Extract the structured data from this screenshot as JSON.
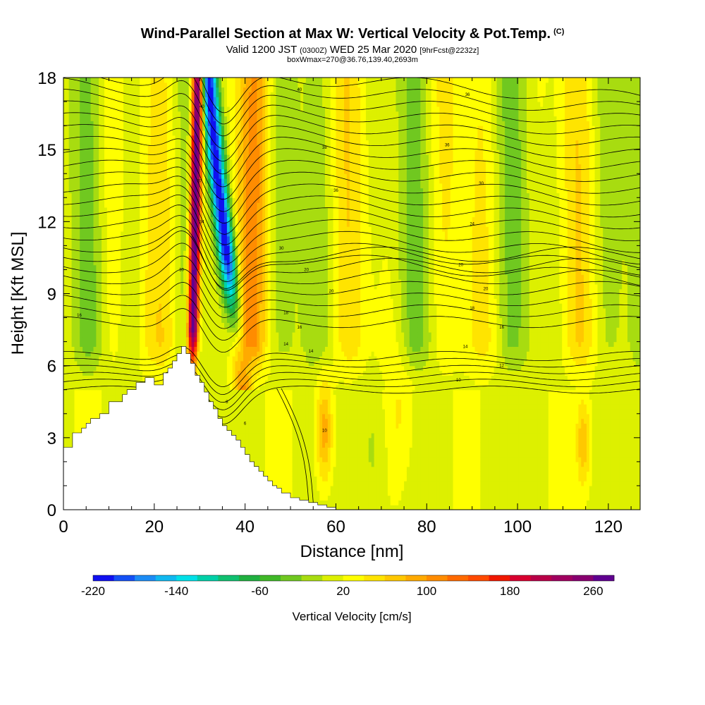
{
  "title": {
    "main": "Wind-Parallel Section at Max W: Vertical Velocity & Pot.Temp.",
    "copyright": "(C)",
    "valid_prefix": "Valid 1200 JST",
    "valid_utc": "(0300Z)",
    "valid_date": "WED 25 Mar 2020",
    "forecast": "[9hrFcst@2232z]",
    "box": "boxWmax=270@36.76,139.40,2693m"
  },
  "chart_data": {
    "type": "heatmap",
    "xlabel": "Distance [nm]",
    "ylabel": "Height [Kft MSL]",
    "xlim": [
      0,
      127
    ],
    "ylim": [
      0,
      18
    ],
    "x_ticks": [
      0,
      20,
      40,
      60,
      80,
      100,
      120
    ],
    "y_ticks": [
      0,
      3,
      6,
      9,
      12,
      15,
      18
    ],
    "colorbar": {
      "label": "Vertical Velocity [cm/s]",
      "range": [
        -220,
        280
      ],
      "tick_values": [
        -220,
        -140,
        -60,
        20,
        100,
        180,
        260
      ],
      "tick_labels": [
        "-220",
        "-140",
        "-60",
        "20",
        "100",
        "180",
        "260"
      ],
      "colors": [
        "#1010f0",
        "#1450f5",
        "#1c8cf5",
        "#10b8f0",
        "#00e0e8",
        "#00d0a8",
        "#10c070",
        "#20b040",
        "#40b828",
        "#70c820",
        "#a8dc10",
        "#ddf000",
        "#ffff00",
        "#ffe400",
        "#ffc800",
        "#ffaa00",
        "#ff8c00",
        "#ff6a00",
        "#ff4a00",
        "#f01800",
        "#d80030",
        "#b80048",
        "#a00060",
        "#880070",
        "#600090"
      ]
    },
    "terrain": {
      "x": [
        0,
        1,
        2,
        2,
        4,
        4,
        5,
        5,
        6,
        6,
        8,
        8,
        10,
        10,
        13,
        13,
        14,
        14,
        16,
        16,
        18,
        18,
        20,
        20,
        22,
        22,
        23,
        23,
        24,
        24,
        25,
        25,
        26,
        26,
        27,
        27,
        28,
        28,
        29,
        29,
        30,
        30,
        31,
        31,
        32,
        32,
        33,
        33,
        34,
        34,
        35,
        35,
        36,
        36,
        37,
        37,
        38,
        38,
        39,
        39,
        40,
        40,
        41,
        41,
        42,
        42,
        43,
        43,
        44,
        44,
        45,
        45,
        46,
        46,
        47,
        47,
        48,
        48,
        50,
        50,
        52,
        52,
        54,
        54,
        56,
        56,
        58,
        58,
        60,
        60
      ],
      "y": [
        2.6,
        2.6,
        2.6,
        3.2,
        3.2,
        3.4,
        3.4,
        3.6,
        3.6,
        3.8,
        3.8,
        4.0,
        4.0,
        4.5,
        4.5,
        4.8,
        4.8,
        5.0,
        5.0,
        5.3,
        5.3,
        5.5,
        5.5,
        5.2,
        5.2,
        5.7,
        5.7,
        5.9,
        5.9,
        6.2,
        6.2,
        6.5,
        6.5,
        6.8,
        6.8,
        6.5,
        6.5,
        6.1,
        6.1,
        5.6,
        5.6,
        5.3,
        5.3,
        4.9,
        4.9,
        4.5,
        4.5,
        4.2,
        4.2,
        3.8,
        3.8,
        3.5,
        3.5,
        3.3,
        3.3,
        3.1,
        3.1,
        2.9,
        2.9,
        2.6,
        2.6,
        2.3,
        2.3,
        2.0,
        2.0,
        1.8,
        1.8,
        1.6,
        1.6,
        1.4,
        1.4,
        1.2,
        1.2,
        1.0,
        1.0,
        0.9,
        0.9,
        0.7,
        0.7,
        0.5,
        0.5,
        0.4,
        0.4,
        0.3,
        0.3,
        0.2,
        0.2,
        0.1,
        0.1,
        0.0
      ]
    },
    "isentrope_labels": [
      {
        "x": 30.5,
        "y": 16.8,
        "text": "40"
      },
      {
        "x": 52.0,
        "y": 17.5,
        "text": "40"
      },
      {
        "x": 57.5,
        "y": 15.1,
        "text": "38"
      },
      {
        "x": 60.0,
        "y": 13.3,
        "text": "36"
      },
      {
        "x": 89.0,
        "y": 17.3,
        "text": "36"
      },
      {
        "x": 84.5,
        "y": 15.2,
        "text": "36"
      },
      {
        "x": 92.0,
        "y": 13.6,
        "text": "30"
      },
      {
        "x": 90.0,
        "y": 11.9,
        "text": "24"
      },
      {
        "x": 30.0,
        "y": 13.7,
        "text": "37"
      },
      {
        "x": 30.5,
        "y": 12.0,
        "text": "34"
      },
      {
        "x": 26.0,
        "y": 10.0,
        "text": "30"
      },
      {
        "x": 48.0,
        "y": 10.9,
        "text": "30"
      },
      {
        "x": 53.5,
        "y": 10.0,
        "text": "20"
      },
      {
        "x": 59.0,
        "y": 9.1,
        "text": "20"
      },
      {
        "x": 87.5,
        "y": 10.2,
        "text": "20"
      },
      {
        "x": 93.0,
        "y": 9.2,
        "text": "20"
      },
      {
        "x": 3.5,
        "y": 8.1,
        "text": "16"
      },
      {
        "x": 49.0,
        "y": 8.2,
        "text": "18"
      },
      {
        "x": 90.0,
        "y": 8.4,
        "text": "18"
      },
      {
        "x": 52.0,
        "y": 7.6,
        "text": "16"
      },
      {
        "x": 96.5,
        "y": 7.6,
        "text": "16"
      },
      {
        "x": 49.0,
        "y": 6.9,
        "text": "14"
      },
      {
        "x": 54.5,
        "y": 6.6,
        "text": "14"
      },
      {
        "x": 88.5,
        "y": 6.8,
        "text": "14"
      },
      {
        "x": 96.5,
        "y": 6.0,
        "text": "12"
      },
      {
        "x": 87.0,
        "y": 5.4,
        "text": "10"
      },
      {
        "x": 57.5,
        "y": 3.3,
        "text": "10"
      },
      {
        "x": 36.0,
        "y": 4.5,
        "text": "8"
      },
      {
        "x": 40.0,
        "y": 3.6,
        "text": "6"
      }
    ]
  }
}
